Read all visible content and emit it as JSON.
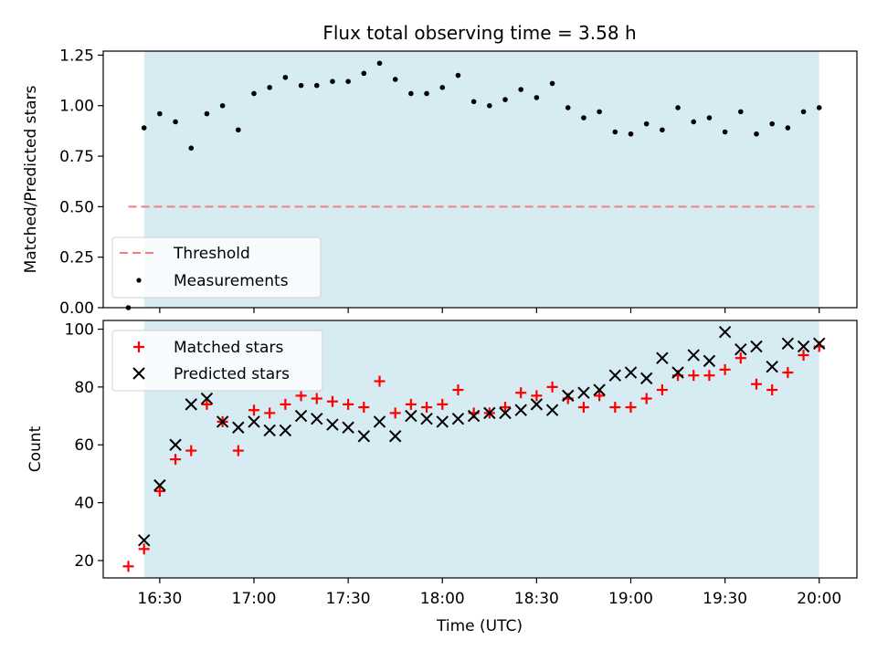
{
  "figure_title": "Flux total observing time = 3.58 h",
  "chart_data": [
    {
      "type": "scatter",
      "title": "Flux total observing time = 3.58 h",
      "xlabel": "",
      "ylabel": "Matched/Predicted stars",
      "xlim": [
        "16:12",
        "20:12"
      ],
      "ylim": [
        0,
        1.27
      ],
      "yticks": [
        "0.00",
        "0.25",
        "0.50",
        "0.75",
        "1.00",
        "1.25"
      ],
      "ytick_values": [
        0,
        0.25,
        0.5,
        0.75,
        1.0,
        1.25
      ],
      "observing_window": [
        "16:25",
        "20:00"
      ],
      "threshold": {
        "value": 0.5,
        "from": "16:20",
        "to": "20:00"
      },
      "legend_position": "lower-left",
      "legend": [
        "Threshold",
        "Measurements"
      ],
      "series": [
        {
          "name": "Measurements",
          "x": [
            "16:20",
            "16:25",
            "16:30",
            "16:35",
            "16:40",
            "16:45",
            "16:50",
            "16:55",
            "17:00",
            "17:05",
            "17:10",
            "17:15",
            "17:20",
            "17:25",
            "17:30",
            "17:35",
            "17:40",
            "17:45",
            "17:50",
            "17:55",
            "18:00",
            "18:05",
            "18:10",
            "18:15",
            "18:20",
            "18:25",
            "18:30",
            "18:35",
            "18:40",
            "18:45",
            "18:50",
            "18:55",
            "19:00",
            "19:05",
            "19:10",
            "19:15",
            "19:20",
            "19:25",
            "19:30",
            "19:35",
            "19:40",
            "19:45",
            "19:50",
            "19:55",
            "20:00"
          ],
          "values": [
            0.0,
            0.89,
            0.96,
            0.92,
            0.79,
            0.96,
            1.0,
            0.88,
            1.06,
            1.09,
            1.14,
            1.1,
            1.1,
            1.12,
            1.12,
            1.16,
            1.21,
            1.13,
            1.06,
            1.06,
            1.09,
            1.15,
            1.02,
            1.0,
            1.03,
            1.08,
            1.04,
            1.11,
            0.99,
            0.94,
            0.97,
            0.87,
            0.86,
            0.91,
            0.88,
            0.99,
            0.92,
            0.94,
            0.87,
            0.97,
            0.86,
            0.91,
            0.89,
            0.97,
            0.99
          ]
        }
      ]
    },
    {
      "type": "scatter",
      "title": "",
      "xlabel": "Time (UTC)",
      "ylabel": "Count",
      "xlim": [
        "16:12",
        "20:12"
      ],
      "ylim": [
        14,
        103
      ],
      "yticks": [
        "20",
        "40",
        "60",
        "80",
        "100"
      ],
      "ytick_values": [
        20,
        40,
        60,
        80,
        100
      ],
      "xticks": [
        "16:30",
        "17:00",
        "17:30",
        "18:00",
        "18:30",
        "19:00",
        "19:30",
        "20:00"
      ],
      "observing_window": [
        "16:25",
        "20:00"
      ],
      "legend_position": "upper-left",
      "legend": [
        "Matched stars",
        "Predicted stars"
      ],
      "x": [
        "16:20",
        "16:25",
        "16:30",
        "16:35",
        "16:40",
        "16:45",
        "16:50",
        "16:55",
        "17:00",
        "17:05",
        "17:10",
        "17:15",
        "17:20",
        "17:25",
        "17:30",
        "17:35",
        "17:40",
        "17:45",
        "17:50",
        "17:55",
        "18:00",
        "18:05",
        "18:10",
        "18:15",
        "18:20",
        "18:25",
        "18:30",
        "18:35",
        "18:40",
        "18:45",
        "18:50",
        "18:55",
        "19:00",
        "19:05",
        "19:10",
        "19:15",
        "19:20",
        "19:25",
        "19:30",
        "19:35",
        "19:40",
        "19:45",
        "19:50",
        "19:55",
        "20:00"
      ],
      "series": [
        {
          "name": "Matched stars",
          "values": [
            18,
            24,
            44,
            55,
            58,
            74,
            68,
            58,
            72,
            71,
            74,
            77,
            76,
            75,
            74,
            73,
            82,
            71,
            74,
            73,
            74,
            79,
            71,
            71,
            73,
            78,
            77,
            80,
            76,
            73,
            77,
            73,
            73,
            76,
            79,
            84,
            84,
            84,
            86,
            90,
            81,
            79,
            85,
            91,
            94
          ]
        },
        {
          "name": "Predicted stars",
          "values": [
            null,
            27,
            46,
            60,
            74,
            76,
            68,
            66,
            68,
            65,
            65,
            70,
            69,
            67,
            66,
            63,
            68,
            63,
            70,
            69,
            68,
            69,
            70,
            71,
            71,
            72,
            74,
            72,
            77,
            78,
            79,
            84,
            85,
            83,
            90,
            85,
            91,
            89,
            99,
            93,
            94,
            87,
            95,
            94,
            95
          ]
        }
      ]
    }
  ],
  "colors": {
    "window": "#add8e6",
    "threshold": "#f08080",
    "measurements": "#000000",
    "matched": "#ff0000",
    "predicted": "#000000"
  }
}
